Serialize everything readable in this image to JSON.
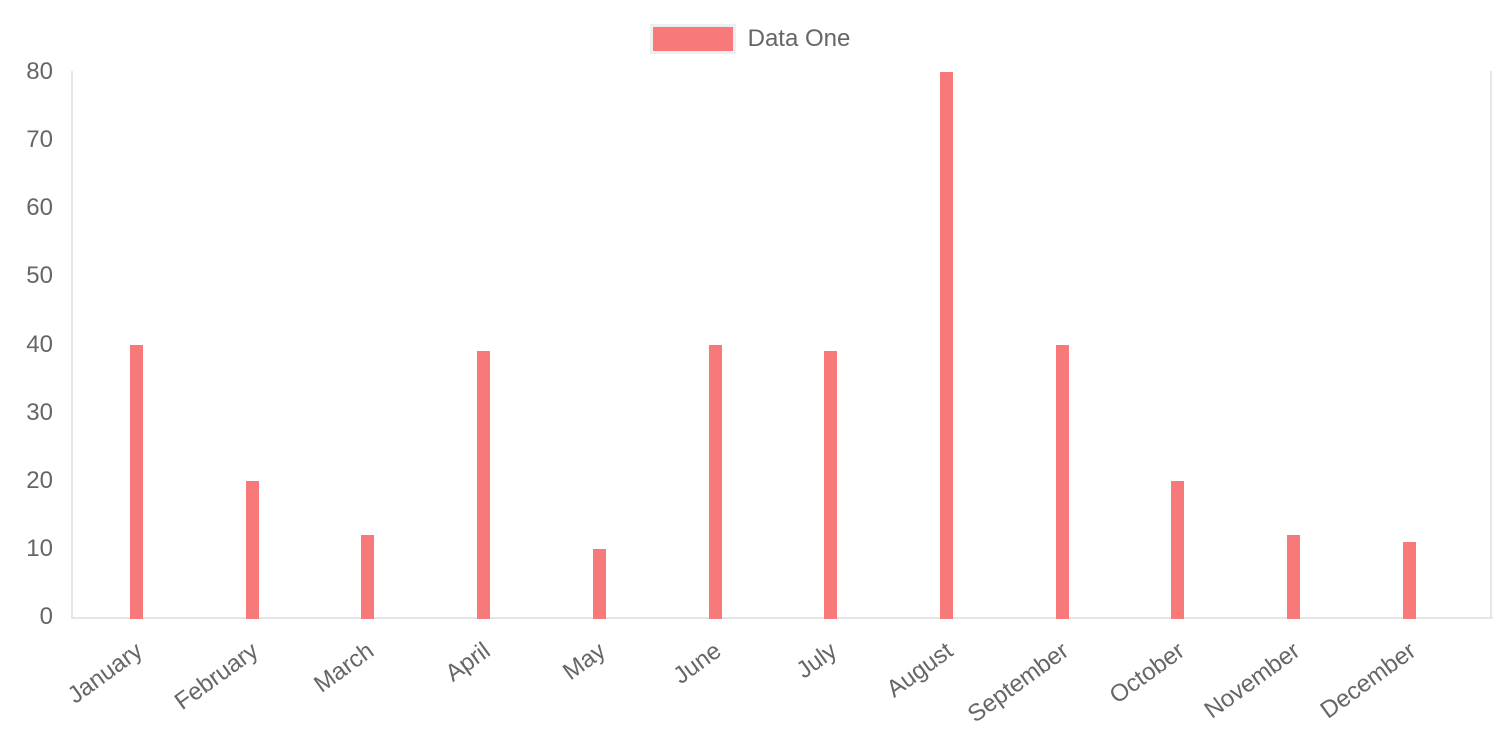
{
  "chart_data": {
    "type": "bar",
    "title": "",
    "legend": {
      "position": "top",
      "items": [
        {
          "label": "Data One",
          "color": "#f87979"
        }
      ]
    },
    "categories": [
      "January",
      "February",
      "March",
      "April",
      "May",
      "June",
      "July",
      "August",
      "September",
      "October",
      "November",
      "December"
    ],
    "series": [
      {
        "name": "Data One",
        "color": "#f87979",
        "values": [
          40,
          20,
          12,
          39,
          10,
          40,
          39,
          80,
          40,
          20,
          12,
          11
        ]
      }
    ],
    "xlabel": "",
    "ylabel": "",
    "ylim": [
      0,
      80
    ],
    "yticks": [
      0,
      10,
      20,
      30,
      40,
      50,
      60,
      70,
      80
    ],
    "grid": "off",
    "axis_border": "left-bottom-right",
    "colors": {
      "bar": "#f87979",
      "axis_line": "#e6e6e6",
      "tick_text": "#666666",
      "legend_text": "#666666"
    }
  }
}
